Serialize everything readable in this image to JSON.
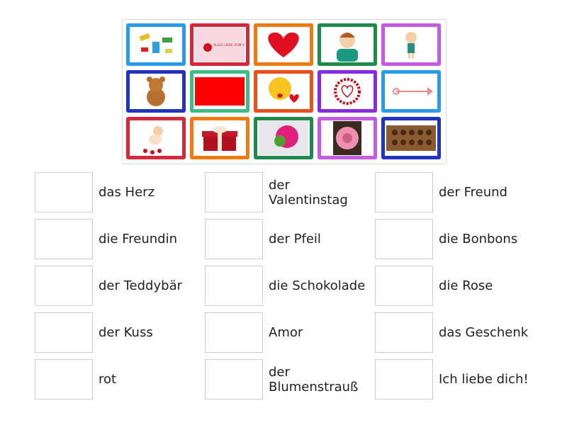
{
  "colors": {
    "blue": "#2a9be8",
    "red": "#d22a3a",
    "orange": "#f07a12",
    "green": "#1f8a4c",
    "purple": "#c45be0",
    "navy": "#2233c2",
    "teal": "#3dbd85",
    "orangered": "#e8501c",
    "violet": "#8a2be2"
  },
  "tiles": [
    {
      "icon": "candies-icon",
      "color": "#2a9be8"
    },
    {
      "icon": "valentines-card-icon",
      "color": "#d22a3a",
      "text": "ALLES LIEBE ZUM VALENTINSTAG!"
    },
    {
      "icon": "heart-icon",
      "color": "#f07a12"
    },
    {
      "icon": "boy-icon",
      "color": "#1f8a4c"
    },
    {
      "icon": "girl-icon",
      "color": "#c45be0"
    },
    {
      "icon": "teddy-bear-icon",
      "color": "#2233c2"
    },
    {
      "icon": "red-color-icon",
      "color": "#3dbd85"
    },
    {
      "icon": "kiss-emoji-icon",
      "color": "#e8501c"
    },
    {
      "icon": "hearts-wreath-icon",
      "color": "#8a2be2"
    },
    {
      "icon": "arrow-icon",
      "color": "#2a9be8"
    },
    {
      "icon": "cupid-icon",
      "color": "#d22a3a"
    },
    {
      "icon": "gift-icon",
      "color": "#f07a12"
    },
    {
      "icon": "bouquet-icon",
      "color": "#1f8a4c"
    },
    {
      "icon": "rose-icon",
      "color": "#c45be0"
    },
    {
      "icon": "chocolates-icon",
      "color": "#2233c2"
    }
  ],
  "labels": [
    [
      "das Herz",
      "der Valentinstag",
      "der Freund"
    ],
    [
      "die Freundin",
      "der Pfeil",
      "die Bonbons"
    ],
    [
      "der Teddybär",
      "die Schokolade",
      "die Rose"
    ],
    [
      "der Kuss",
      "Amor",
      "das Geschenk"
    ],
    [
      "rot",
      "der Blumenstrauß",
      "Ich liebe dich!"
    ]
  ]
}
